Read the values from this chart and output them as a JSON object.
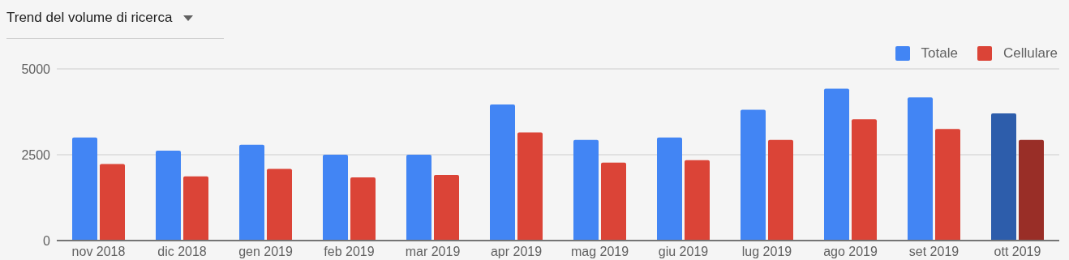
{
  "chart_data": {
    "type": "bar",
    "title": "Trend del volume di ricerca",
    "categories": [
      "nov 2018",
      "dic 2018",
      "gen 2019",
      "feb 2019",
      "mar 2019",
      "apr 2019",
      "mag 2019",
      "giu 2019",
      "lug 2019",
      "ago 2019",
      "set 2019",
      "ott 2019"
    ],
    "series": [
      {
        "name": "Totale",
        "color": "#4285f4",
        "colors": [
          "#4285f4",
          "#4285f4",
          "#4285f4",
          "#4285f4",
          "#4285f4",
          "#4285f4",
          "#4285f4",
          "#4285f4",
          "#4285f4",
          "#4285f4",
          "#4285f4",
          "#2d5dab"
        ],
        "values": [
          3000,
          2620,
          2790,
          2500,
          2500,
          3960,
          2930,
          3000,
          3810,
          4420,
          4170,
          3700
        ]
      },
      {
        "name": "Cellulare",
        "color": "#db4437",
        "colors": [
          "#db4437",
          "#db4437",
          "#db4437",
          "#db4437",
          "#db4437",
          "#db4437",
          "#db4437",
          "#db4437",
          "#db4437",
          "#db4437",
          "#db4437",
          "#992e27"
        ],
        "values": [
          2230,
          1870,
          2090,
          1840,
          1910,
          3150,
          2270,
          2340,
          2930,
          3530,
          3250,
          2930
        ]
      }
    ],
    "ylim": [
      0,
      5000
    ],
    "yticks": [
      0,
      2500,
      5000
    ],
    "grid": "y",
    "legend": "top right"
  }
}
